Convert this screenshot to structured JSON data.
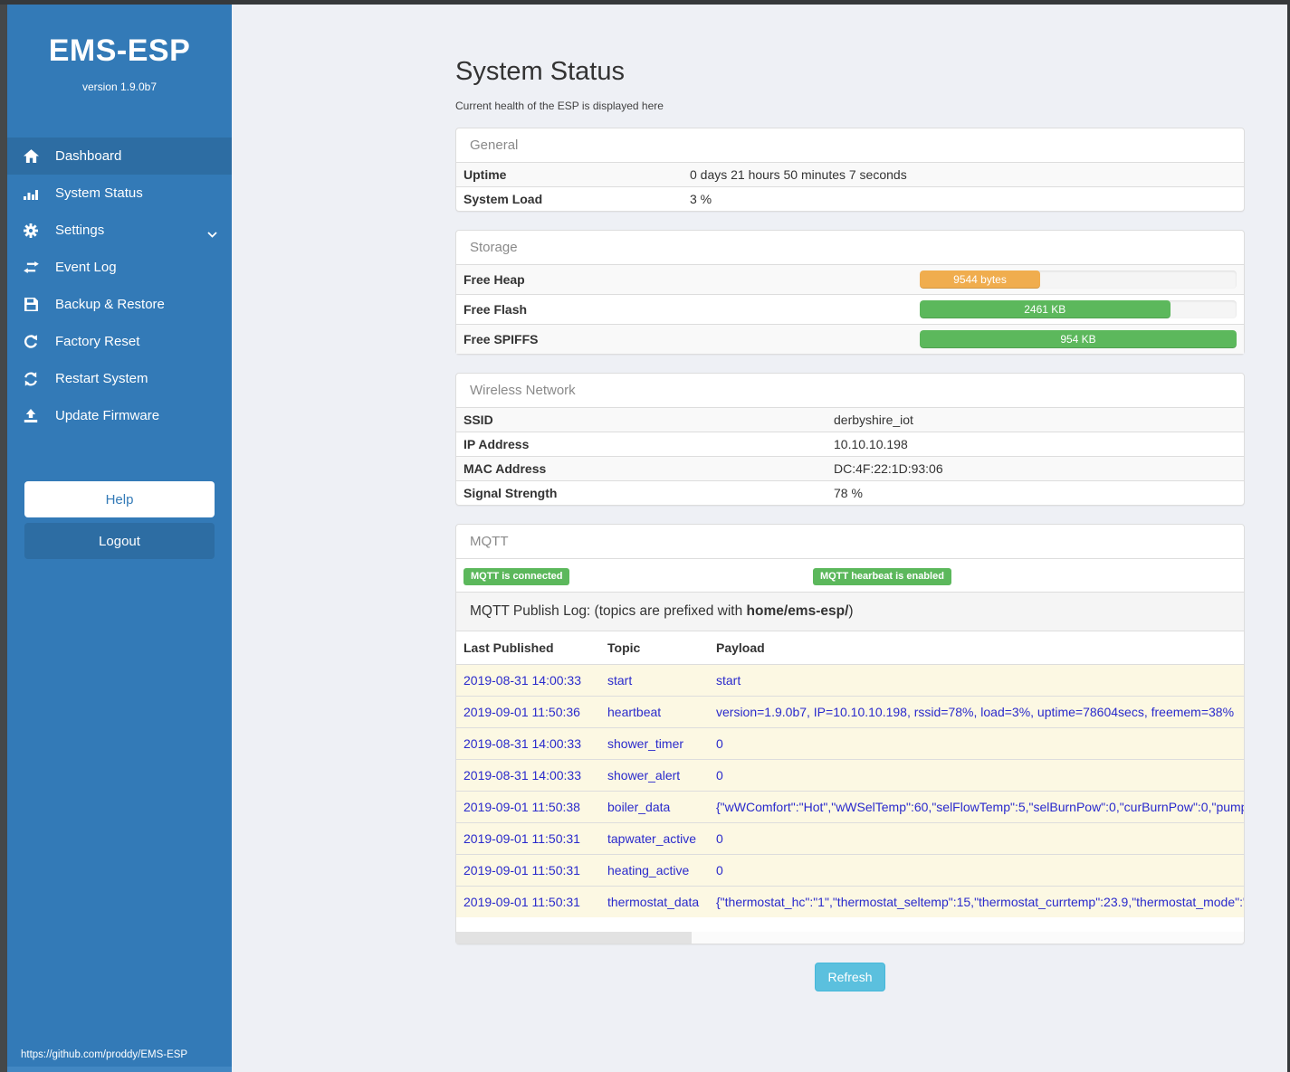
{
  "colors": {
    "sidebar": "#337ab7",
    "sidebar_active": "#2d6da3",
    "frame": "#36393b",
    "success_green": "#5cb85c",
    "warning_orange": "#f0ad4e",
    "info_blue": "#5bc0de",
    "log_row_bg": "#fcf8e3",
    "log_text_blue": "#2a2acc"
  },
  "sidebar": {
    "title": "EMS-ESP",
    "version": "version 1.9.0b7",
    "items": [
      {
        "label": "Dashboard",
        "icon": "home-icon",
        "active": true
      },
      {
        "label": "System Status",
        "icon": "bar-chart-icon",
        "active": false
      },
      {
        "label": "Settings",
        "icon": "gear-icon",
        "active": false,
        "has_chevron": true
      },
      {
        "label": "Event Log",
        "icon": "exchange-icon",
        "active": false
      },
      {
        "label": "Backup & Restore",
        "icon": "floppy-icon",
        "active": false
      },
      {
        "label": "Factory Reset",
        "icon": "rotate-ccw-icon",
        "active": false
      },
      {
        "label": "Restart System",
        "icon": "refresh-icon",
        "active": false
      },
      {
        "label": "Update Firmware",
        "icon": "upload-icon",
        "active": false
      }
    ],
    "help_label": "Help",
    "logout_label": "Logout",
    "footer_link": "https://github.com/proddy/EMS-ESP"
  },
  "main": {
    "title": "System Status",
    "subtitle": "Current health of the ESP is displayed here",
    "panels": {
      "general": {
        "title": "General",
        "rows": [
          {
            "label": "Uptime",
            "value": "0 days 21 hours 50 minutes 7 seconds"
          },
          {
            "label": "System Load",
            "value": "3 %"
          }
        ]
      },
      "storage": {
        "title": "Storage",
        "rows": [
          {
            "label": "Free Heap",
            "bar_label": "9544 bytes",
            "percent": 38,
            "color": "#f0ad4e"
          },
          {
            "label": "Free Flash",
            "bar_label": "2461 KB",
            "percent": 79,
            "color": "#5cb85c"
          },
          {
            "label": "Free SPIFFS",
            "bar_label": "954 KB",
            "percent": 100,
            "color": "#5cb85c"
          }
        ]
      },
      "wireless": {
        "title": "Wireless Network",
        "rows": [
          {
            "label": "SSID",
            "value": "derbyshire_iot"
          },
          {
            "label": "IP Address",
            "value": "10.10.10.198"
          },
          {
            "label": "MAC Address",
            "value": "DC:4F:22:1D:93:06"
          },
          {
            "label": "Signal Strength",
            "value": "78 %"
          }
        ]
      },
      "mqtt": {
        "title": "MQTT",
        "badges": [
          "MQTT is connected",
          "MQTT hearbeat is enabled"
        ],
        "publish_log": {
          "prefix": "MQTT Publish Log: (topics are prefixed with ",
          "bold": "home/ems-esp/",
          "suffix": ")"
        },
        "columns": [
          "Last Published",
          "Topic",
          "Payload"
        ],
        "rows": [
          {
            "published": "2019-08-31 14:00:33",
            "topic": "start",
            "payload": "start"
          },
          {
            "published": "2019-09-01 11:50:36",
            "topic": "heartbeat",
            "payload": "version=1.9.0b7, IP=10.10.10.198, rssid=78%, load=3%, uptime=78604secs, freemem=38%"
          },
          {
            "published": "2019-08-31 14:00:33",
            "topic": "shower_timer",
            "payload": "0"
          },
          {
            "published": "2019-08-31 14:00:33",
            "topic": "shower_alert",
            "payload": "0"
          },
          {
            "published": "2019-09-01 11:50:38",
            "topic": "boiler_data",
            "payload": "{\"wWComfort\":\"Hot\",\"wWSelTemp\":60,\"selFlowTemp\":5,\"selBurnPow\":0,\"curBurnPow\":0,\"pump"
          },
          {
            "published": "2019-09-01 11:50:31",
            "topic": "tapwater_active",
            "payload": "0"
          },
          {
            "published": "2019-09-01 11:50:31",
            "topic": "heating_active",
            "payload": "0"
          },
          {
            "published": "2019-09-01 11:50:31",
            "topic": "thermostat_data",
            "payload": "{\"thermostat_hc\":\"1\",\"thermostat_seltemp\":15,\"thermostat_currtemp\":23.9,\"thermostat_mode\":\""
          }
        ]
      }
    },
    "refresh_label": "Refresh"
  }
}
